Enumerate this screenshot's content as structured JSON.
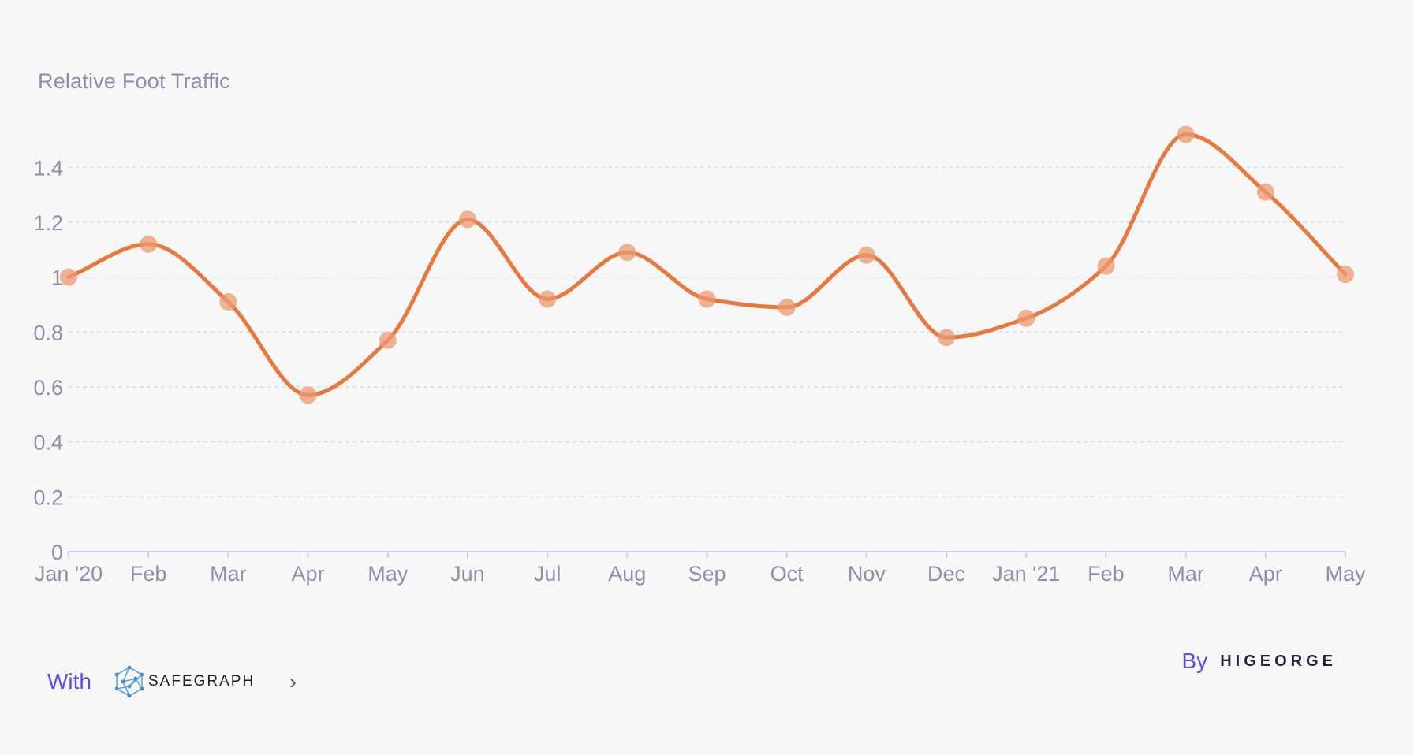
{
  "chart_data": {
    "type": "line",
    "title": "Relative Foot Traffic",
    "categories": [
      "Jan '20",
      "Feb",
      "Mar",
      "Apr",
      "May",
      "Jun",
      "Jul",
      "Aug",
      "Sep",
      "Oct",
      "Nov",
      "Dec",
      "Jan '21",
      "Feb",
      "Mar",
      "Apr",
      "May"
    ],
    "series": [
      {
        "values": [
          1.0,
          1.12,
          0.91,
          0.57,
          0.77,
          1.21,
          0.92,
          1.09,
          0.92,
          0.89,
          1.08,
          0.78,
          0.85,
          1.04,
          1.52,
          1.31,
          1.01
        ]
      }
    ],
    "y_ticks": [
      "0",
      "0.2",
      "0.4",
      "0.6",
      "0.8",
      "1",
      "1.2",
      "1.4"
    ],
    "ylim": [
      0,
      1.55
    ],
    "grid": true,
    "smooth": true
  },
  "colors": {
    "line": "#e8793e",
    "point": "#eb9a70",
    "accent": "#5b4ee8"
  },
  "footer": {
    "with_label": "With",
    "safegraph_brand": "SAFEGRAPH",
    "safegraph_icon": "safegraph-network-icon",
    "chevron_icon": "chevron-right-icon",
    "by_label": "By",
    "higeorge_brand": "HIGEORGE"
  }
}
